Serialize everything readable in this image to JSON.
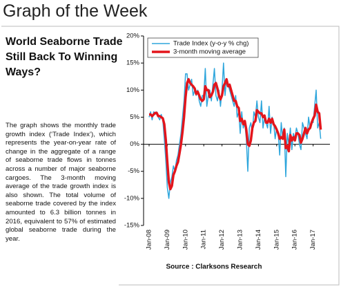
{
  "header": {
    "title": "Graph of the Week"
  },
  "article": {
    "heading": "World Seaborne Trade Still Back To Winning Ways?",
    "body": "The graph shows the monthly trade growth index (‘Trade Index’), which represents the year-on-year rate of change in the aggregate of a range of seaborne trade flows in tonnes across a number of major seaborne cargoes. The 3-month moving average of the trade growth index is also shown. The total volume of seaborne trade covered by the index amounted to 6.3 billion tonnes in 2016, equivalent to 57% of estimated global seaborne trade during the year."
  },
  "chart_data": {
    "type": "line",
    "categories": [
      "Jan-08",
      null,
      null,
      null,
      null,
      null,
      null,
      null,
      null,
      null,
      null,
      null,
      "Jan-09",
      null,
      null,
      null,
      null,
      null,
      null,
      null,
      null,
      null,
      null,
      null,
      "Jan-10",
      null,
      null,
      null,
      null,
      null,
      null,
      null,
      null,
      null,
      null,
      null,
      "Jan-11",
      null,
      null,
      null,
      null,
      null,
      null,
      null,
      null,
      null,
      null,
      null,
      "Jan-12",
      null,
      null,
      null,
      null,
      null,
      null,
      null,
      null,
      null,
      null,
      null,
      "Jan-13",
      null,
      null,
      null,
      null,
      null,
      null,
      null,
      null,
      null,
      null,
      null,
      "Jan-14",
      null,
      null,
      null,
      null,
      null,
      null,
      null,
      null,
      null,
      null,
      null,
      "Jan-15",
      null,
      null,
      null,
      null,
      null,
      null,
      null,
      null,
      null,
      null,
      null,
      "Jan-16",
      null,
      null,
      null,
      null,
      null,
      null,
      null,
      null,
      null,
      null,
      null,
      "Jan-17",
      null,
      null,
      null,
      null,
      null
    ],
    "series": [
      {
        "name": "Trade Index (y-o-y % chg)",
        "color": "#2ea6dc",
        "width": 1.5,
        "values": [
          5,
          6,
          4.5,
          6,
          5.5,
          6,
          5,
          4.5,
          5.5,
          4.5,
          1,
          -3,
          -8,
          -10,
          -7,
          -6,
          -4,
          -5,
          -3,
          -2,
          0,
          2,
          5,
          8,
          13,
          13,
          10,
          11,
          12,
          9,
          10,
          9,
          10,
          8,
          7,
          9,
          9,
          14,
          7,
          9,
          10,
          8,
          11,
          14,
          9,
          8,
          10,
          7,
          10,
          15,
          9,
          12,
          11,
          10,
          9,
          8,
          7,
          9,
          5,
          6,
          2,
          6,
          3,
          4,
          1,
          -5,
          3,
          4,
          2,
          6,
          5,
          8,
          5,
          4,
          8,
          3,
          5,
          4,
          3,
          7,
          2,
          5,
          4,
          1,
          3,
          2,
          -2,
          4,
          1,
          3,
          -6,
          2,
          0,
          3,
          -1,
          2,
          1,
          3,
          2,
          0,
          -1,
          4,
          3,
          2,
          1,
          5,
          3,
          4,
          4,
          7,
          10,
          3,
          4,
          1
        ]
      },
      {
        "name": "3-month moving average",
        "color": "#e3151c",
        "width": 3.5,
        "values": [
          5.5,
          5.5,
          5.2,
          5.5,
          5.8,
          5.8,
          5.2,
          5.2,
          5,
          4.8,
          3.7,
          0.8,
          -3.3,
          -7,
          -8.3,
          -7.7,
          -5.7,
          -5,
          -4,
          -3.3,
          -1.7,
          0,
          2.3,
          5,
          8.7,
          11.3,
          12,
          11.3,
          11,
          10.7,
          10.3,
          9.3,
          9.7,
          9,
          8.3,
          8,
          8.3,
          10.7,
          10,
          10,
          8.7,
          9,
          9.7,
          11,
          11.3,
          10.3,
          9,
          8.3,
          9,
          10.7,
          11.3,
          12,
          10.7,
          11,
          10,
          9,
          8,
          8,
          7,
          6.7,
          4.3,
          4.7,
          3.7,
          4.3,
          2.7,
          0,
          -0.3,
          0.7,
          3,
          4,
          4.3,
          6.3,
          6,
          5.7,
          5.7,
          5,
          5.3,
          4,
          4,
          4.7,
          4,
          4.7,
          3.7,
          3.3,
          2.7,
          2,
          1,
          1.3,
          1,
          2.7,
          -0.7,
          -0.3,
          -1.3,
          1.7,
          0.7,
          1.3,
          0.7,
          2,
          2,
          1.7,
          0.3,
          1,
          2,
          3,
          2,
          2.7,
          3,
          4,
          4.7,
          5.3,
          7.3,
          6,
          5.7,
          2.7
        ]
      }
    ],
    "ylim": [
      -15,
      20
    ],
    "yticks": [
      {
        "value": -15,
        "label": "-15%"
      },
      {
        "value": -10,
        "label": "-10%"
      },
      {
        "value": -5,
        "label": "-5%"
      },
      {
        "value": 0,
        "label": "0%"
      },
      {
        "value": 5,
        "label": "5%"
      },
      {
        "value": 10,
        "label": "10%"
      },
      {
        "value": 15,
        "label": "15%"
      },
      {
        "value": 20,
        "label": "20%"
      }
    ],
    "legend": "upper left",
    "source": "Source : Clarksons Research"
  }
}
